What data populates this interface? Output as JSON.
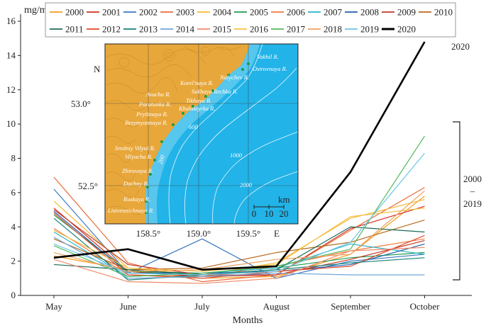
{
  "chart_data": {
    "type": "line",
    "title": "",
    "xlabel": "Months",
    "ylabel": "mg/m³",
    "ylim": [
      0,
      16
    ],
    "yticks": [
      0,
      2,
      4,
      6,
      8,
      10,
      12,
      14,
      16
    ],
    "categories": [
      "May",
      "June",
      "July",
      "August",
      "September",
      "October"
    ],
    "legend_position": "top",
    "series": [
      {
        "name": "2000",
        "color": "#f39c1c",
        "values": [
          2.3,
          1.5,
          1.0,
          1.1,
          2.4,
          5.8
        ]
      },
      {
        "name": "2001",
        "color": "#d0301f",
        "values": [
          5.1,
          1.4,
          1.1,
          1.2,
          3.9,
          5.2
        ]
      },
      {
        "name": "2002",
        "color": "#3a78c2",
        "values": [
          6.2,
          1.3,
          3.3,
          1.0,
          2.0,
          2.4
        ]
      },
      {
        "name": "2003",
        "color": "#e86b3a",
        "values": [
          6.9,
          1.9,
          0.8,
          1.2,
          3.8,
          6.3
        ]
      },
      {
        "name": "2004",
        "color": "#f7b733",
        "values": [
          5.5,
          1.6,
          1.2,
          1.9,
          4.5,
          5.6
        ]
      },
      {
        "name": "2005",
        "color": "#1f9a4a",
        "values": [
          4.7,
          1.4,
          1.3,
          1.6,
          2.2,
          2.5
        ]
      },
      {
        "name": "2006",
        "color": "#f07a3c",
        "values": [
          3.9,
          1.2,
          1.1,
          1.7,
          2.6,
          3.3
        ]
      },
      {
        "name": "2007",
        "color": "#2bb5c9",
        "values": [
          3.7,
          1.1,
          1.3,
          1.6,
          3.0,
          2.4
        ]
      },
      {
        "name": "2008",
        "color": "#1f5fa8",
        "values": [
          4.9,
          1.3,
          1.3,
          1.4,
          1.8,
          3.0
        ]
      },
      {
        "name": "2009",
        "color": "#c0392b",
        "values": [
          5.0,
          1.8,
          1.2,
          1.2,
          2.1,
          3.2
        ]
      },
      {
        "name": "2010",
        "color": "#b86a1f",
        "values": [
          3.3,
          1.5,
          1.6,
          2.5,
          3.1,
          4.4
        ]
      },
      {
        "name": "2011",
        "color": "#1b6b58",
        "values": [
          1.8,
          1.5,
          1.2,
          1.5,
          4.0,
          3.7
        ]
      },
      {
        "name": "2012",
        "color": "#e04a2a",
        "values": [
          4.8,
          1.2,
          1.0,
          1.4,
          1.7,
          3.5
        ]
      },
      {
        "name": "2013",
        "color": "#17817a",
        "values": [
          4.5,
          0.9,
          1.2,
          1.5,
          1.9,
          2.2
        ]
      },
      {
        "name": "2014",
        "color": "#6fa6d8",
        "values": [
          3.4,
          1.0,
          1.1,
          1.3,
          1.2,
          1.2
        ]
      },
      {
        "name": "2015",
        "color": "#f08a6a",
        "values": [
          2.1,
          0.8,
          0.7,
          1.0,
          2.6,
          2.8
        ]
      },
      {
        "name": "2016",
        "color": "#f4c145",
        "values": [
          3.8,
          1.6,
          1.4,
          1.8,
          4.6,
          5.1
        ]
      },
      {
        "name": "2017",
        "color": "#52b85a",
        "values": [
          2.9,
          1.1,
          1.3,
          1.7,
          2.7,
          9.3
        ]
      },
      {
        "name": "2018",
        "color": "#f0a060",
        "values": [
          2.5,
          1.4,
          1.5,
          2.1,
          2.4,
          6.1
        ]
      },
      {
        "name": "2019",
        "color": "#6bc6e2",
        "values": [
          3.0,
          1.3,
          1.2,
          1.4,
          3.1,
          8.3
        ]
      },
      {
        "name": "2020",
        "color": "#000000",
        "values": [
          2.2,
          2.7,
          1.5,
          1.7,
          7.2,
          14.8
        ]
      }
    ],
    "annotations": {
      "label_2020": "2020",
      "bracket_top": "2000",
      "bracket_dash": "–",
      "bracket_bottom": "2019"
    },
    "inset_map": {
      "compass_n": "N",
      "compass_e": "E",
      "lat_labels": [
        "53.0°",
        "52.5°"
      ],
      "lon_labels": [
        "158.5°",
        "159.0°",
        "159.5°"
      ],
      "scale_unit": "km",
      "scale_ticks": [
        "0",
        "10",
        "20"
      ],
      "depth_labels": [
        "200",
        "600",
        "1000",
        "2000"
      ],
      "river_labels": [
        "Vakhil R.",
        "Ostrovnaya R.",
        "Nalychev R.",
        "Korel'naya R.",
        "Sukhaya Rechka R.",
        "Avacha R.",
        "Paratunka R.",
        "Tikhaya R.",
        "Khalaktyrka R.",
        "Pryibnaya R.",
        "Bezymyannaya R.",
        "Sredniy Vilyui R.",
        "Vilyucha R.",
        "Zhirovaya R.",
        "Dachny R.",
        "Ruskaya R.",
        "Listvennichnaya R."
      ]
    }
  },
  "colors": {
    "land": "#e8a73a",
    "sea": "#22b3e8",
    "shelf": "#6fd0f0"
  }
}
